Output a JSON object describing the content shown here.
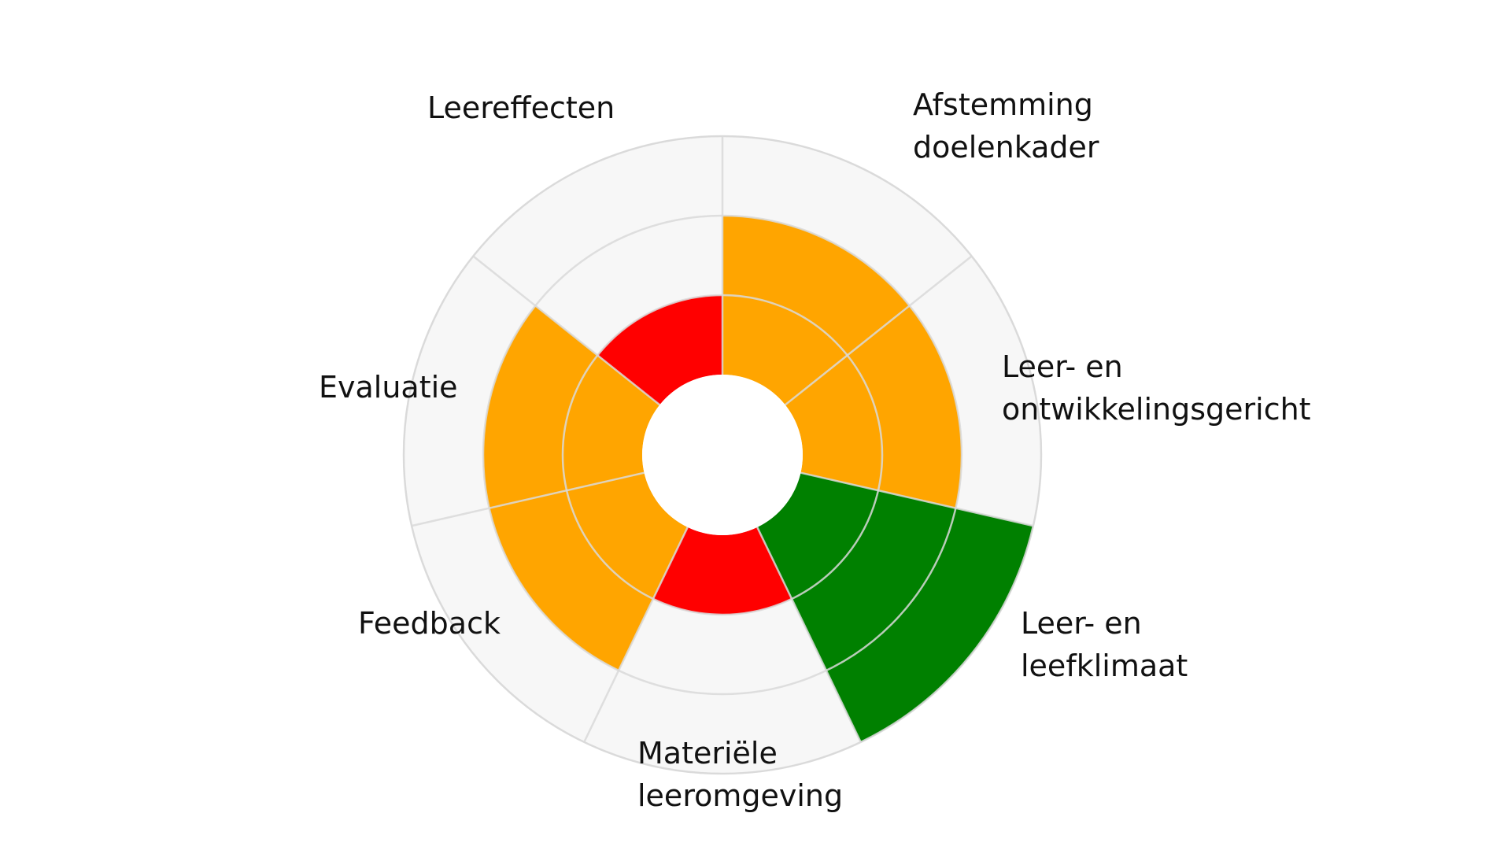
{
  "chart_data": {
    "type": "polar-area",
    "scale_max": 3,
    "rings": [
      1,
      2,
      3
    ],
    "colors": {
      "background": "#f7f7f7",
      "grid": "#d9d9d9",
      "level_1": "#ff0000",
      "level_2": "#ffa500",
      "level_3": "#008000"
    },
    "categories": [
      {
        "label": [
          "Afstemming",
          "doelenkader"
        ],
        "value": 2,
        "color": "#ffa500"
      },
      {
        "label": [
          "Leer- en",
          "ontwikkelingsgericht"
        ],
        "value": 2,
        "color": "#ffa500"
      },
      {
        "label": [
          "Leer- en",
          "leefklimaat"
        ],
        "value": 3,
        "color": "#008000"
      },
      {
        "label": [
          "Materiële",
          "leeromgeving"
        ],
        "value": 1,
        "color": "#ff0000"
      },
      {
        "label": [
          "Feedback"
        ],
        "value": 2,
        "color": "#ffa500"
      },
      {
        "label": [
          "Evaluatie"
        ],
        "value": 2,
        "color": "#ffa500"
      },
      {
        "label": [
          "Leereffecten"
        ],
        "value": 1,
        "color": "#ff0000"
      }
    ]
  }
}
